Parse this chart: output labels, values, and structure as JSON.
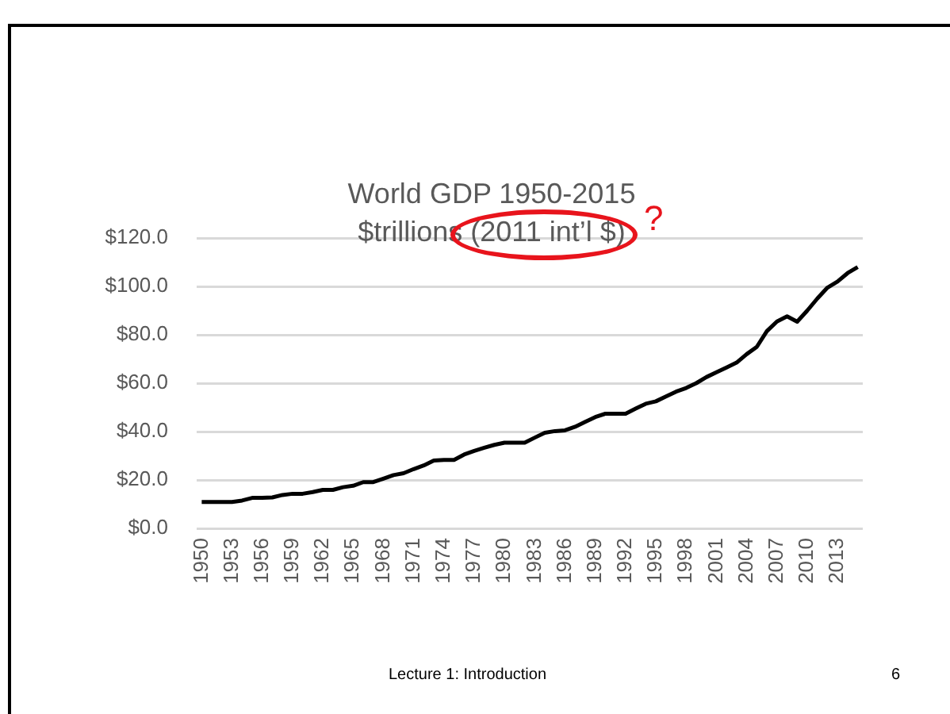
{
  "chart_data": {
    "type": "line",
    "title": "World GDP 1950-2015",
    "subtitle": "$trillions (2011 int’l $)",
    "categories": [
      "1950",
      null,
      null,
      "1953",
      null,
      null,
      "1956",
      null,
      null,
      "1959",
      null,
      null,
      "1962",
      null,
      null,
      "1965",
      null,
      null,
      "1968",
      null,
      null,
      "1971",
      null,
      null,
      "1974",
      null,
      null,
      "1977",
      null,
      null,
      "1980",
      null,
      null,
      "1983",
      null,
      null,
      "1986",
      null,
      null,
      "1989",
      null,
      null,
      "1992",
      null,
      null,
      "1995",
      null,
      null,
      "1998",
      null,
      null,
      "2001",
      null,
      null,
      "2004",
      null,
      null,
      "2007",
      null,
      null,
      "2010",
      null,
      null,
      "2013",
      null,
      null
    ],
    "series": [
      {
        "color": "#000000",
        "values": [
          10.9,
          10.9,
          10.9,
          10.9,
          11.5,
          12.6,
          12.6,
          12.8,
          13.8,
          14.3,
          14.3,
          15,
          15.9,
          15.9,
          17,
          17.6,
          19.1,
          19.1,
          20.5,
          22,
          22.8,
          24.5,
          26,
          28,
          28.3,
          28.3,
          30.5,
          32,
          33.3,
          34.5,
          35.4,
          35.4,
          35.4,
          37.5,
          39.5,
          40.2,
          40.5,
          42,
          44,
          46,
          47.4,
          47.4,
          47.4,
          49.5,
          51.5,
          52.5,
          54.5,
          56.5,
          58,
          60,
          62.5,
          64.5,
          66.5,
          68.5,
          72,
          75,
          81.5,
          85.5,
          87.6,
          85.4,
          90,
          95,
          99.5,
          102,
          105.5,
          108
        ]
      }
    ],
    "ylim": [
      0,
      120
    ],
    "yticks": [
      {
        "value": 0,
        "label": "$0.0"
      },
      {
        "value": 20,
        "label": "$20.0"
      },
      {
        "value": 40,
        "label": "$40.0"
      },
      {
        "value": 60,
        "label": "$60.0"
      },
      {
        "value": 80,
        "label": "$80.0"
      },
      {
        "value": 100,
        "label": "$100.0"
      },
      {
        "value": 120,
        "label": "$120.0"
      }
    ],
    "grid": "y",
    "legend": false,
    "marker": "none",
    "line_style": "solid",
    "annotations": [
      "?",
      "Lecture 1:  Introduction",
      "6"
    ]
  }
}
